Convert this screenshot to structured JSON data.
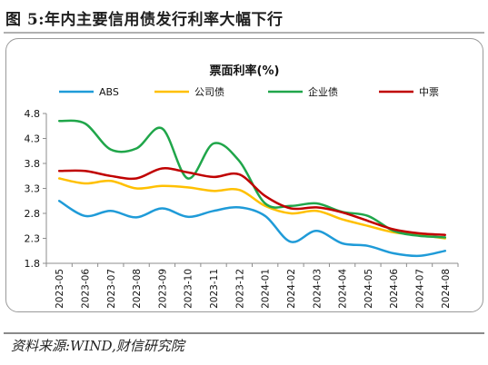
{
  "figure": {
    "label": "图 5:年内主要信用债发行利率大幅下行",
    "source": "资料来源:WIND,财信研究院"
  },
  "colors": {
    "ABS": "#1f9bd8",
    "公司债": "#ffc000",
    "企业债": "#20a64a",
    "中票": "#c00000"
  },
  "chart_data": {
    "type": "line",
    "title": "票面利率(%)",
    "categories": [
      "2023-05",
      "2023-06",
      "2023-07",
      "2023-08",
      "2023-09",
      "2023-10",
      "2023-11",
      "2023-12",
      "2024-01",
      "2024-02",
      "2024-03",
      "2024-04",
      "2024-05",
      "2024-06",
      "2024-07",
      "2024-08"
    ],
    "yticks": [
      1.8,
      2.3,
      2.8,
      3.3,
      3.8,
      4.3,
      4.8
    ],
    "ylim": [
      1.8,
      4.8
    ],
    "legend_position": "top",
    "grid": false,
    "series": [
      {
        "name": "ABS",
        "values": [
          3.05,
          2.75,
          2.85,
          2.72,
          2.9,
          2.73,
          2.85,
          2.92,
          2.75,
          2.23,
          2.45,
          2.2,
          2.15,
          2.0,
          1.95,
          2.05
        ]
      },
      {
        "name": "公司债",
        "values": [
          3.5,
          3.4,
          3.45,
          3.3,
          3.35,
          3.32,
          3.25,
          3.27,
          2.95,
          2.8,
          2.85,
          2.68,
          2.55,
          2.42,
          2.37,
          2.3
        ]
      },
      {
        "name": "企业债",
        "values": [
          4.65,
          4.6,
          4.08,
          4.1,
          4.5,
          3.5,
          4.2,
          3.85,
          3.0,
          2.95,
          3.0,
          2.83,
          2.75,
          2.45,
          2.35,
          2.32
        ]
      },
      {
        "name": "中票",
        "values": [
          3.65,
          3.65,
          3.55,
          3.5,
          3.7,
          3.62,
          3.53,
          3.58,
          3.15,
          2.9,
          2.92,
          2.82,
          2.65,
          2.48,
          2.4,
          2.37
        ]
      }
    ]
  }
}
